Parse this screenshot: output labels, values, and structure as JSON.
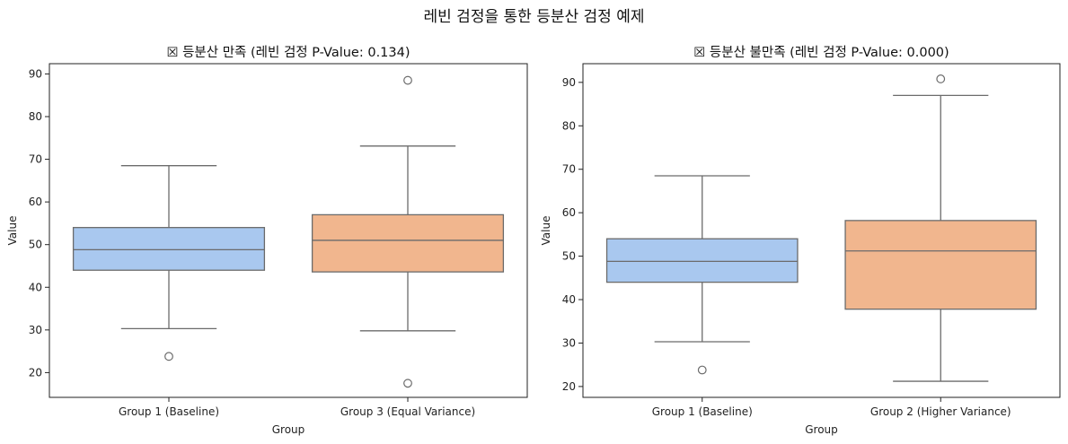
{
  "figure": {
    "suptitle": "레빈 검정을 통한 등분산 검정 예제"
  },
  "chart_data": [
    {
      "type": "box",
      "title": "☒ 등분산 만족 (레빈 검정 P-Value: 0.134)",
      "xlabel": "Group",
      "ylabel": "Value",
      "ylim": [
        14.2,
        92.4
      ],
      "yticks": [
        20,
        30,
        40,
        50,
        60,
        70,
        80,
        90
      ],
      "grid": false,
      "groups": [
        {
          "label": "Group 1 (Baseline)",
          "color": "#a9c8ef",
          "whisker_low": 30.3,
          "q1": 44.0,
          "median": 48.8,
          "q3": 54.0,
          "whisker_high": 68.5,
          "outliers": [
            23.8
          ]
        },
        {
          "label": "Group 3 (Equal Variance)",
          "color": "#f1b68e",
          "whisker_low": 29.8,
          "q1": 43.6,
          "median": 51.0,
          "q3": 57.0,
          "whisker_high": 73.1,
          "outliers": [
            88.5,
            17.5
          ]
        }
      ]
    },
    {
      "type": "box",
      "title": "☒ 등분산 불만족 (레빈 검정 P-Value: 0.000)",
      "xlabel": "Group",
      "ylabel": "Value",
      "ylim": [
        17.5,
        94.3
      ],
      "yticks": [
        20,
        30,
        40,
        50,
        60,
        70,
        80,
        90
      ],
      "grid": false,
      "groups": [
        {
          "label": "Group 1 (Baseline)",
          "color": "#a9c8ef",
          "whisker_low": 30.3,
          "q1": 44.0,
          "median": 48.8,
          "q3": 54.0,
          "whisker_high": 68.5,
          "outliers": [
            23.8
          ]
        },
        {
          "label": "Group 2 (Higher Variance)",
          "color": "#f1b68e",
          "whisker_low": 21.2,
          "q1": 37.8,
          "median": 51.2,
          "q3": 58.2,
          "whisker_high": 87.0,
          "outliers": [
            90.8
          ]
        }
      ]
    }
  ]
}
